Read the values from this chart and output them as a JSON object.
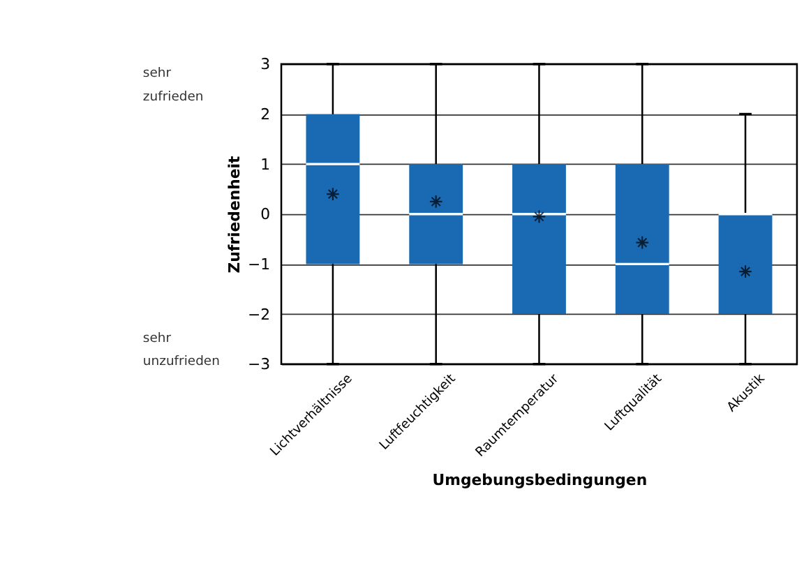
{
  "chart_data": {
    "type": "box",
    "xlabel": "Umgebungsbedingungen",
    "ylabel": "Zufriedenheit",
    "categories": [
      "Lichtverhältnisse",
      "Luftfeuchtigkeit",
      "Raumtemperatur",
      "Luftqualität",
      "Akustik"
    ],
    "series": [
      {
        "color": "#1a6ab3",
        "boxes": [
          {
            "low": -3,
            "q1": -1,
            "median": 1,
            "q3": 2,
            "high": 3,
            "mean": 0.4
          },
          {
            "low": -3,
            "q1": -1,
            "median": 0,
            "q3": 1,
            "high": 3,
            "mean": 0.25
          },
          {
            "low": -3,
            "q1": -2,
            "median": 0,
            "q3": 1,
            "high": 3,
            "mean": -0.05
          },
          {
            "low": -3,
            "q1": -2,
            "median": -1,
            "q3": 1,
            "high": 3,
            "mean": -0.57
          },
          {
            "low": -3,
            "q1": -2,
            "median": 0,
            "q3": 0,
            "high": 2,
            "mean": -1.15
          }
        ]
      }
    ],
    "ylim": [
      -3,
      3
    ],
    "yticks": [
      -3,
      -2,
      -1,
      0,
      1,
      2,
      3
    ],
    "grid": "y",
    "marker": "star",
    "annotations": [
      "sehr zufrieden",
      "sehr unzufrieden"
    ]
  }
}
